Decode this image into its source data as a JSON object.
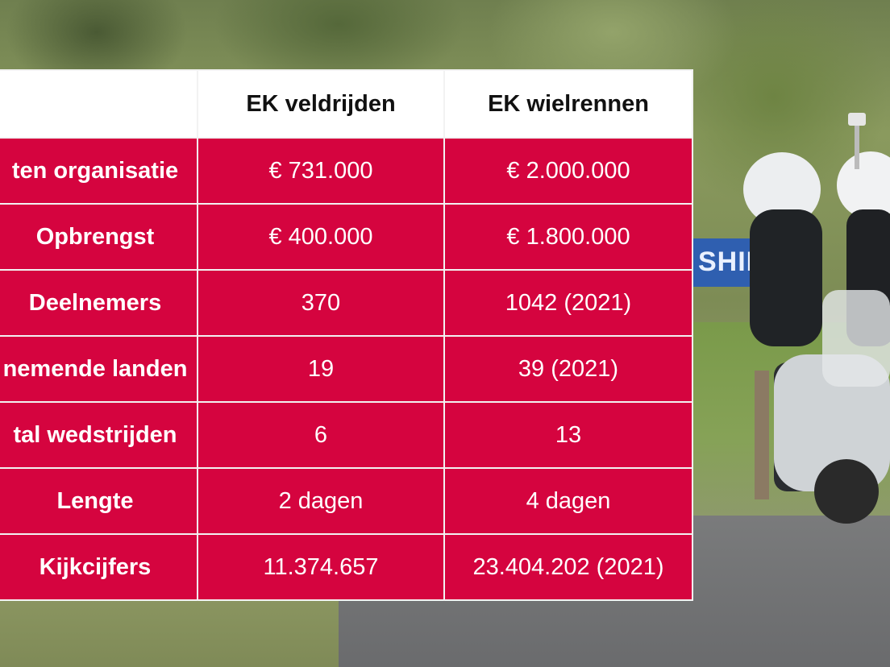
{
  "table": {
    "headers": [
      "",
      "EK veldrijden",
      "EK wielrennen"
    ],
    "rows": [
      {
        "label": "ten organisatie",
        "veld": "€ 731.000",
        "weg": "€ 2.000.000"
      },
      {
        "label": "Opbrengst",
        "veld": "€ 400.000",
        "weg": "€ 1.800.000"
      },
      {
        "label": "Deelnemers",
        "veld": "370",
        "weg": "1042 (2021)"
      },
      {
        "label": "nemende landen",
        "veld": "19",
        "weg": "39 (2021)"
      },
      {
        "label": "tal wedstrijden",
        "veld": "6",
        "weg": "13"
      },
      {
        "label": "Lengte",
        "veld": "2 dagen",
        "weg": "4 dagen"
      },
      {
        "label": "Kijkcijfers",
        "veld": "11.374.657",
        "weg": "23.404.202 (2021)"
      }
    ]
  },
  "background": {
    "banner_text": "SHIM",
    "table_color": "#d5043f"
  }
}
